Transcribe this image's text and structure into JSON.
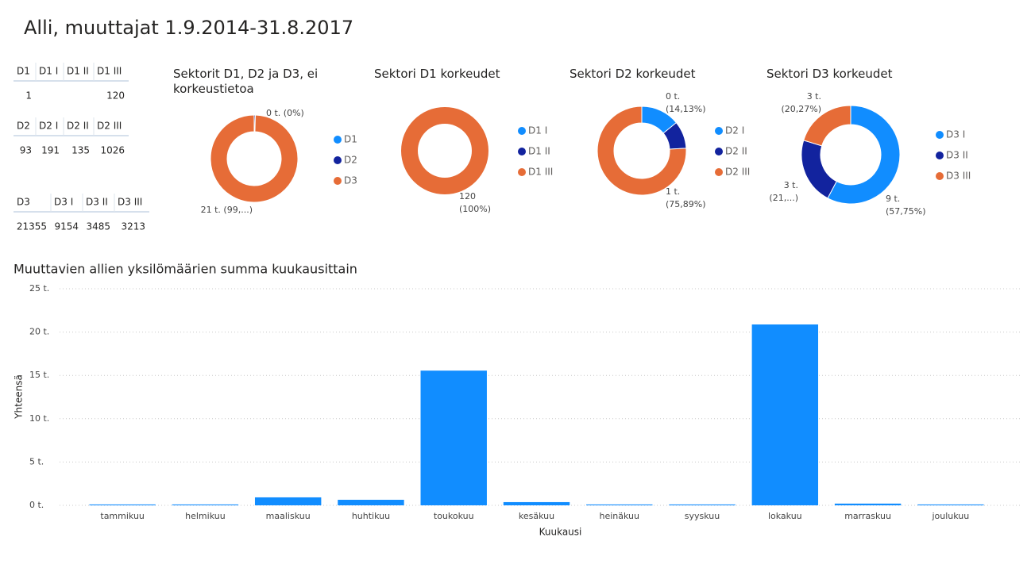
{
  "title": "Alli, muuttajat 1.9.2014-31.8.2017",
  "tables": [
    {
      "columns": [
        "D1",
        "D1 I",
        "D1 II",
        "D1 III"
      ],
      "row": [
        1,
        null,
        null,
        120
      ]
    },
    {
      "columns": [
        "D2",
        "D2 I",
        "D2 II",
        "D2 III"
      ],
      "row": [
        93,
        191,
        135,
        1026
      ]
    },
    {
      "columns": [
        "D3",
        "D3 I",
        "D3 II",
        "D3 III"
      ],
      "row": [
        21355,
        9154,
        3485,
        3213
      ]
    }
  ],
  "chart_data": [
    {
      "type": "donut",
      "title": "Sektorit D1, D2 ja D3, ei korkeustietoa",
      "categories": [
        "D1",
        "D2",
        "D3"
      ],
      "values": [
        1,
        93,
        21355
      ],
      "colors": [
        "#118dff",
        "#12239e",
        "#e66c37"
      ],
      "value_labels": [
        null,
        [
          "0 t. (0%)"
        ],
        [
          "21 t. (99,...)"
        ]
      ]
    },
    {
      "type": "donut",
      "title": "Sektori D1 korkeudet",
      "categories": [
        "D1 I",
        "D1 II",
        "D1 III"
      ],
      "values": [
        0,
        0,
        120
      ],
      "colors": [
        "#118dff",
        "#12239e",
        "#e66c37"
      ],
      "value_labels": [
        null,
        null,
        [
          "120",
          "(100%)"
        ]
      ]
    },
    {
      "type": "donut",
      "title": "Sektori D2 korkeudet",
      "categories": [
        "D2 I",
        "D2 II",
        "D2 III"
      ],
      "values": [
        191,
        135,
        1026
      ],
      "colors": [
        "#118dff",
        "#12239e",
        "#e66c37"
      ],
      "value_labels": [
        [
          "0 t.",
          "(14,13%)"
        ],
        null,
        [
          "1 t.",
          "(75,89%)"
        ]
      ]
    },
    {
      "type": "donut",
      "title": "Sektori D3 korkeudet",
      "categories": [
        "D3 I",
        "D3 II",
        "D3 III"
      ],
      "values": [
        9154,
        3485,
        3213
      ],
      "colors": [
        "#118dff",
        "#12239e",
        "#e66c37"
      ],
      "value_labels": [
        [
          "9 t.",
          "(57,75%)"
        ],
        [
          "3 t.",
          "(21,...)"
        ],
        [
          "3 t.",
          "(20,27%)"
        ]
      ]
    },
    {
      "type": "bar",
      "title": "Muuttavien allien yksilömäärien summa kuukausittain",
      "x_label": "Kuukausi",
      "y_label": "Yhteensä",
      "categories": [
        "tammikuu",
        "helmikuu",
        "maaliskuu",
        "huhtikuu",
        "toukokuu",
        "kesäkuu",
        "heinäkuu",
        "syyskuu",
        "lokakuu",
        "marraskuu",
        "joulukuu"
      ],
      "values": [
        100,
        100,
        920,
        640,
        15550,
        370,
        100,
        100,
        20880,
        200,
        100
      ],
      "color": "#118dff",
      "ylim": [
        0,
        25000
      ],
      "yticks": [
        {
          "value": 0,
          "label": "0 t."
        },
        {
          "value": 5000,
          "label": "5 t."
        },
        {
          "value": 10000,
          "label": "10 t."
        },
        {
          "value": 15000,
          "label": "15 t."
        },
        {
          "value": 20000,
          "label": "20 t."
        },
        {
          "value": 25000,
          "label": "25 t."
        }
      ],
      "grid": true
    }
  ]
}
